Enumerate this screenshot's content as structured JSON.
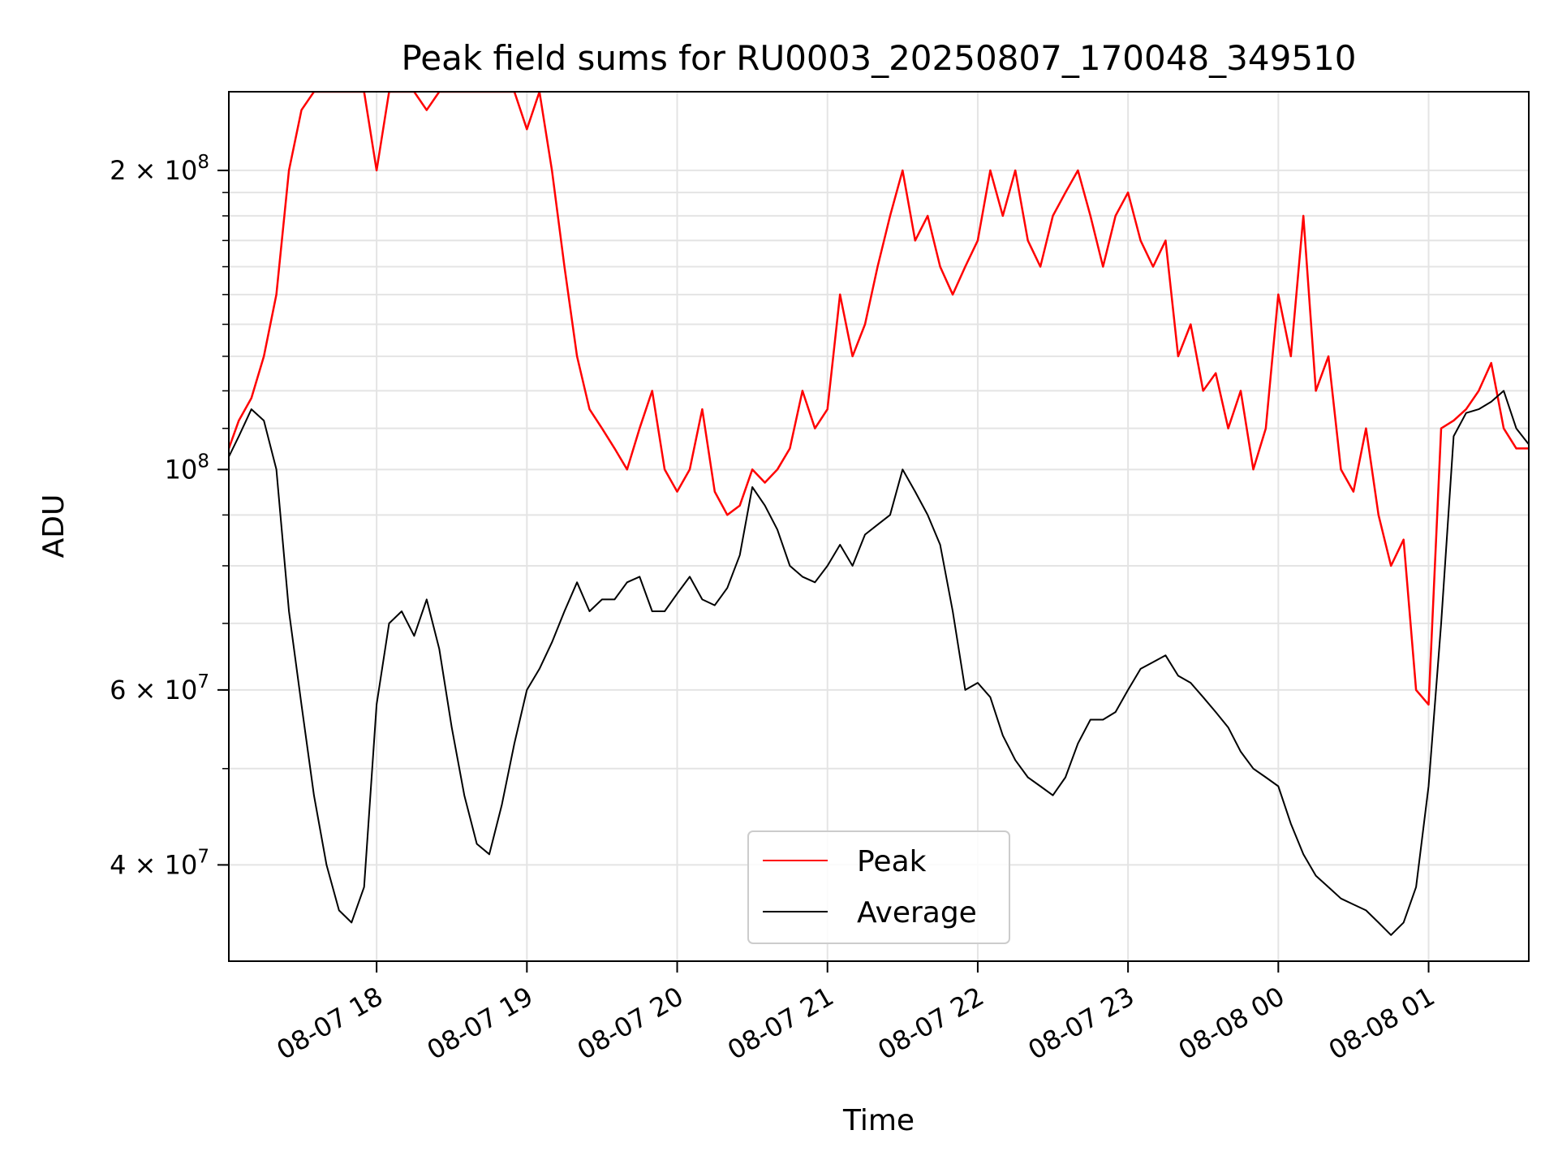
{
  "chart_data": {
    "type": "line",
    "title": "Peak field sums for RU0003_20250807_170048_349510",
    "xlabel": "Time",
    "ylabel": "ADU",
    "yscale": "log",
    "grid": true,
    "legend_position": "lower-center",
    "xlim": [
      "2025-08-07 17:01",
      "2025-08-08 01:40"
    ],
    "ylim": [
      32000000,
      240000000
    ],
    "x_ticks": [
      {
        "value": "2025-08-07 18:00",
        "label": "08-07 18"
      },
      {
        "value": "2025-08-07 19:00",
        "label": "08-07 19"
      },
      {
        "value": "2025-08-07 20:00",
        "label": "08-07 20"
      },
      {
        "value": "2025-08-07 21:00",
        "label": "08-07 21"
      },
      {
        "value": "2025-08-07 22:00",
        "label": "08-07 22"
      },
      {
        "value": "2025-08-07 23:00",
        "label": "08-07 23"
      },
      {
        "value": "2025-08-08 00:00",
        "label": "08-08 00"
      },
      {
        "value": "2025-08-08 01:00",
        "label": "08-08 01"
      }
    ],
    "y_ticks": [
      {
        "value": 40000000,
        "mantissa": "4",
        "exponent": "7"
      },
      {
        "value": 60000000,
        "mantissa": "6",
        "exponent": "7"
      },
      {
        "value": 100000000,
        "mantissa": "",
        "exponent": "8"
      },
      {
        "value": 200000000,
        "mantissa": "2",
        "exponent": "8"
      }
    ],
    "times_label": "sample times",
    "times": [
      "2025-08-07 17:01",
      "2025-08-07 17:05",
      "2025-08-07 17:10",
      "2025-08-07 17:15",
      "2025-08-07 17:20",
      "2025-08-07 17:25",
      "2025-08-07 17:30",
      "2025-08-07 17:35",
      "2025-08-07 17:40",
      "2025-08-07 17:45",
      "2025-08-07 17:50",
      "2025-08-07 17:55",
      "2025-08-07 18:00",
      "2025-08-07 18:05",
      "2025-08-07 18:10",
      "2025-08-07 18:15",
      "2025-08-07 18:20",
      "2025-08-07 18:25",
      "2025-08-07 18:30",
      "2025-08-07 18:35",
      "2025-08-07 18:40",
      "2025-08-07 18:45",
      "2025-08-07 18:50",
      "2025-08-07 18:55",
      "2025-08-07 19:00",
      "2025-08-07 19:05",
      "2025-08-07 19:10",
      "2025-08-07 19:15",
      "2025-08-07 19:20",
      "2025-08-07 19:25",
      "2025-08-07 19:30",
      "2025-08-07 19:35",
      "2025-08-07 19:40",
      "2025-08-07 19:45",
      "2025-08-07 19:50",
      "2025-08-07 19:55",
      "2025-08-07 20:00",
      "2025-08-07 20:05",
      "2025-08-07 20:10",
      "2025-08-07 20:15",
      "2025-08-07 20:20",
      "2025-08-07 20:25",
      "2025-08-07 20:30",
      "2025-08-07 20:35",
      "2025-08-07 20:40",
      "2025-08-07 20:45",
      "2025-08-07 20:50",
      "2025-08-07 20:55",
      "2025-08-07 21:00",
      "2025-08-07 21:05",
      "2025-08-07 21:10",
      "2025-08-07 21:15",
      "2025-08-07 21:20",
      "2025-08-07 21:25",
      "2025-08-07 21:30",
      "2025-08-07 21:35",
      "2025-08-07 21:40",
      "2025-08-07 21:45",
      "2025-08-07 21:50",
      "2025-08-07 21:55",
      "2025-08-07 22:00",
      "2025-08-07 22:05",
      "2025-08-07 22:10",
      "2025-08-07 22:15",
      "2025-08-07 22:20",
      "2025-08-07 22:25",
      "2025-08-07 22:30",
      "2025-08-07 22:35",
      "2025-08-07 22:40",
      "2025-08-07 22:45",
      "2025-08-07 22:50",
      "2025-08-07 22:55",
      "2025-08-07 23:00",
      "2025-08-07 23:05",
      "2025-08-07 23:10",
      "2025-08-07 23:15",
      "2025-08-07 23:20",
      "2025-08-07 23:25",
      "2025-08-07 23:30",
      "2025-08-07 23:35",
      "2025-08-07 23:40",
      "2025-08-07 23:45",
      "2025-08-07 23:50",
      "2025-08-07 23:55",
      "2025-08-08 00:00",
      "2025-08-08 00:05",
      "2025-08-08 00:10",
      "2025-08-08 00:15",
      "2025-08-08 00:20",
      "2025-08-08 00:25",
      "2025-08-08 00:30",
      "2025-08-08 00:35",
      "2025-08-08 00:40",
      "2025-08-08 00:45",
      "2025-08-08 00:50",
      "2025-08-08 00:55",
      "2025-08-08 01:00",
      "2025-08-08 01:05",
      "2025-08-08 01:10",
      "2025-08-08 01:15",
      "2025-08-08 01:20",
      "2025-08-08 01:25",
      "2025-08-08 01:30",
      "2025-08-08 01:35",
      "2025-08-08 01:40"
    ],
    "series": [
      {
        "name": "Peak",
        "color": "#ff0000",
        "values": [
          105000000,
          112000000,
          118000000,
          130000000,
          150000000,
          200000000,
          230000000,
          240000000,
          240000000,
          240000000,
          240000000,
          240000000,
          200000000,
          240000000,
          240000000,
          240000000,
          230000000,
          240000000,
          240000000,
          240000000,
          240000000,
          240000000,
          240000000,
          240000000,
          220000000,
          240000000,
          200000000,
          160000000,
          130000000,
          115000000,
          110000000,
          105000000,
          100000000,
          110000000,
          120000000,
          100000000,
          95000000,
          100000000,
          115000000,
          95000000,
          90000000,
          92000000,
          100000000,
          97000000,
          100000000,
          105000000,
          120000000,
          110000000,
          115000000,
          150000000,
          130000000,
          140000000,
          160000000,
          180000000,
          200000000,
          170000000,
          180000000,
          160000000,
          150000000,
          160000000,
          170000000,
          200000000,
          180000000,
          200000000,
          170000000,
          160000000,
          180000000,
          190000000,
          200000000,
          180000000,
          160000000,
          180000000,
          190000000,
          170000000,
          160000000,
          170000000,
          130000000,
          140000000,
          120000000,
          125000000,
          110000000,
          120000000,
          100000000,
          110000000,
          150000000,
          130000000,
          180000000,
          120000000,
          130000000,
          100000000,
          95000000,
          110000000,
          90000000,
          80000000,
          85000000,
          60000000,
          58000000,
          110000000,
          112000000,
          115000000,
          120000000,
          128000000,
          110000000,
          105000000,
          105000000
        ]
      },
      {
        "name": "Average",
        "color": "#000000",
        "values": [
          103000000,
          108000000,
          115000000,
          112000000,
          100000000,
          72000000,
          58000000,
          47000000,
          40000000,
          36000000,
          35000000,
          38000000,
          58000000,
          70000000,
          72000000,
          68000000,
          74000000,
          66000000,
          55000000,
          47000000,
          42000000,
          41000000,
          46000000,
          53000000,
          60000000,
          63000000,
          67000000,
          72000000,
          77000000,
          72000000,
          74000000,
          74000000,
          77000000,
          78000000,
          72000000,
          72000000,
          75000000,
          78000000,
          74000000,
          73000000,
          76000000,
          82000000,
          96000000,
          92000000,
          87000000,
          80000000,
          78000000,
          77000000,
          80000000,
          84000000,
          80000000,
          86000000,
          88000000,
          90000000,
          100000000,
          95000000,
          90000000,
          84000000,
          72000000,
          60000000,
          61000000,
          59000000,
          54000000,
          51000000,
          49000000,
          48000000,
          47000000,
          49000000,
          53000000,
          56000000,
          56000000,
          57000000,
          60000000,
          63000000,
          64000000,
          65000000,
          62000000,
          61000000,
          59000000,
          57000000,
          55000000,
          52000000,
          50000000,
          49000000,
          48000000,
          44000000,
          41000000,
          39000000,
          38000000,
          37000000,
          36500000,
          36000000,
          35000000,
          34000000,
          35000000,
          38000000,
          48000000,
          70000000,
          108000000,
          114000000,
          115000000,
          117000000,
          120000000,
          110000000,
          106000000
        ]
      }
    ]
  }
}
